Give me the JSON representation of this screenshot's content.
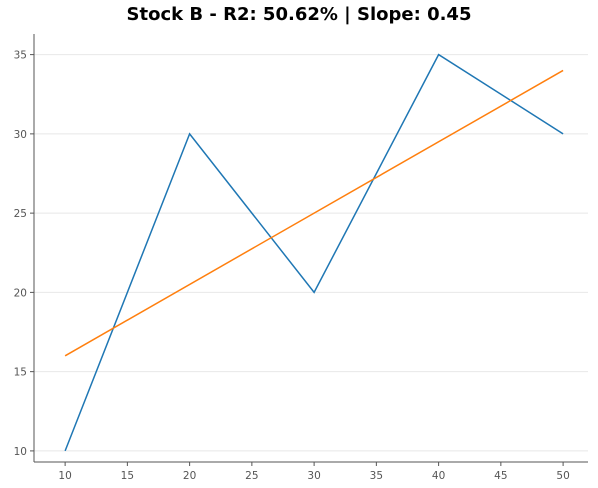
{
  "chart_data": {
    "type": "line",
    "title": "Stock B - R2: 50.62% | Slope: 0.45",
    "xlabel": "",
    "ylabel": "",
    "xlim": [
      7.5,
      52
    ],
    "ylim": [
      9.3,
      36.3
    ],
    "x_ticks": [
      10,
      15,
      20,
      25,
      30,
      35,
      40,
      45,
      50
    ],
    "y_ticks": [
      10,
      15,
      20,
      25,
      30,
      35
    ],
    "grid": "horizontal",
    "legend": "none",
    "series": [
      {
        "x": [
          10,
          20,
          30,
          40,
          50
        ],
        "values": [
          10,
          30,
          20,
          35,
          30
        ],
        "color": "#1f77b4"
      },
      {
        "x": [
          10,
          50
        ],
        "values": [
          16,
          34
        ],
        "color": "#ff7f0e"
      }
    ]
  }
}
